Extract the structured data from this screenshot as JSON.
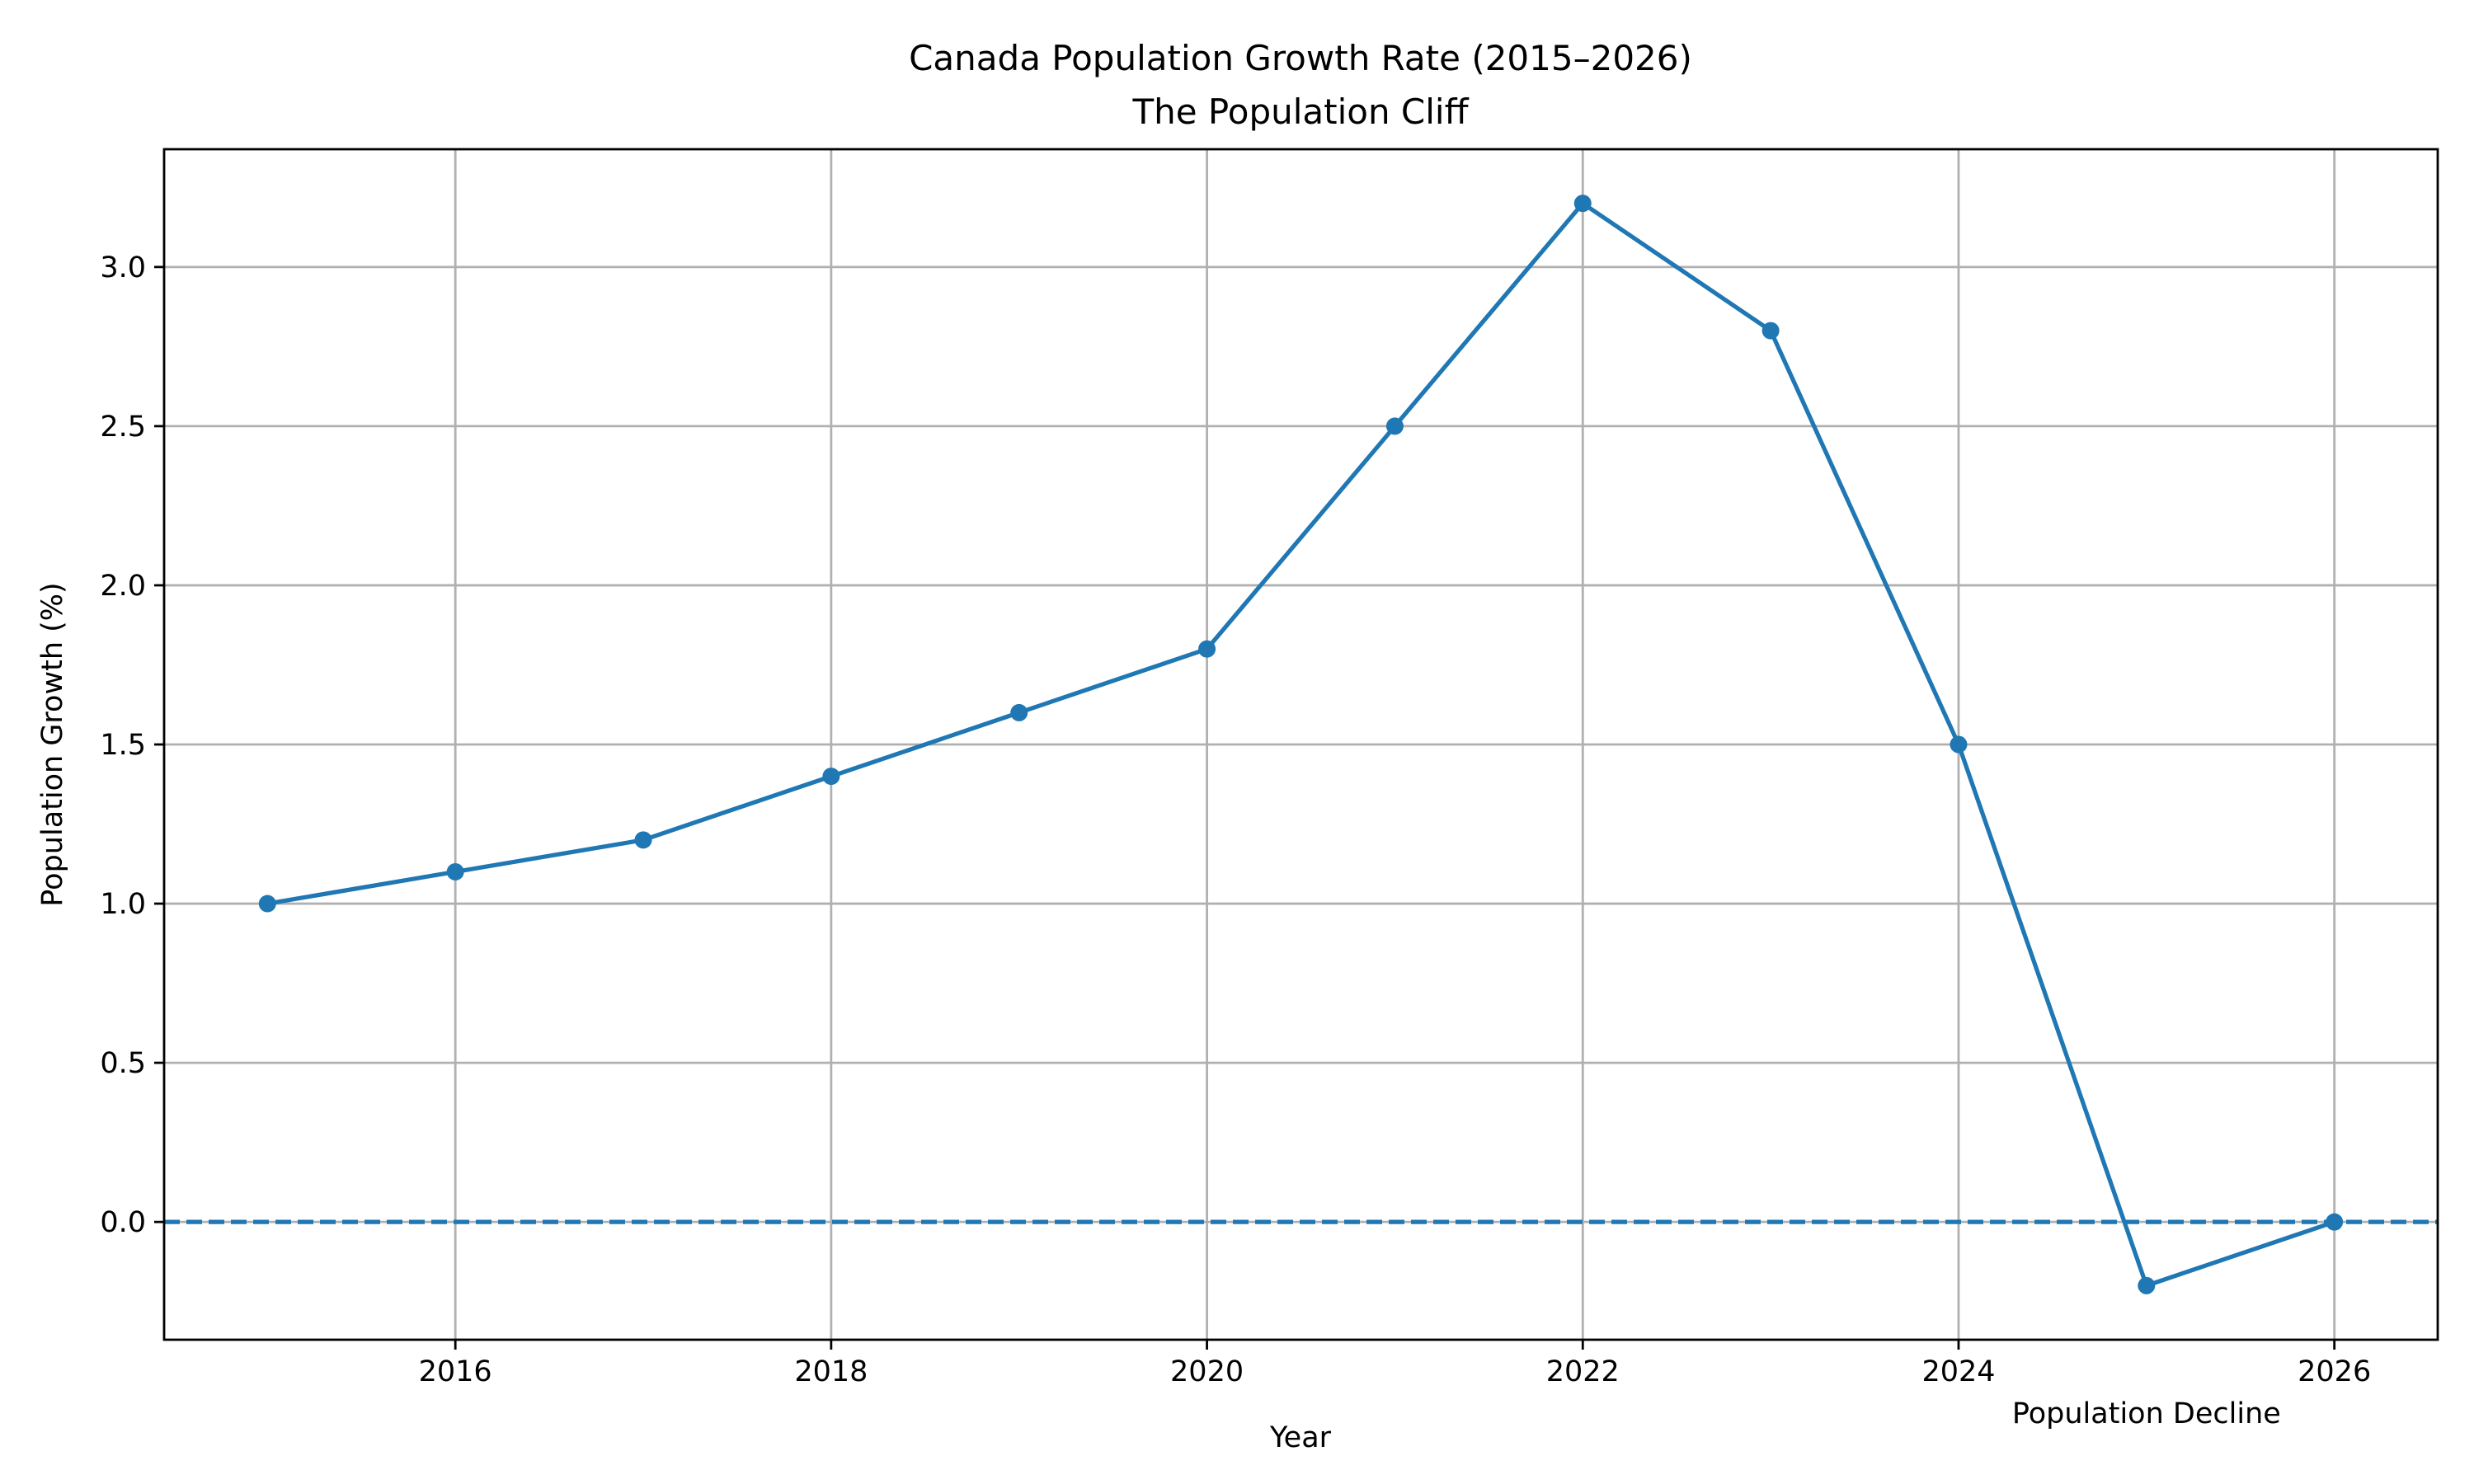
{
  "chart_data": {
    "type": "line",
    "title": "Canada Population Growth Rate (2015–2026)",
    "subtitle": "The Population Cliff",
    "xlabel": "Year",
    "ylabel": "Population Growth (%)",
    "x": [
      2015,
      2016,
      2017,
      2018,
      2019,
      2020,
      2021,
      2022,
      2023,
      2024,
      2025,
      2026
    ],
    "series": [
      {
        "values": [
          1.0,
          1.1,
          1.2,
          1.4,
          1.6,
          1.8,
          2.5,
          3.2,
          2.8,
          1.5,
          -0.2,
          0.0
        ],
        "color": "#1f77b4",
        "marker": "circle"
      }
    ],
    "reference_line": {
      "y": 0.0,
      "style": "dashed",
      "color": "#1f77b4"
    },
    "annotations": [
      {
        "text": "Population Decline",
        "x": 2025,
        "y": -0.6
      }
    ],
    "xlim": [
      2014.45,
      2026.55
    ],
    "ylim": [
      -0.37,
      3.37
    ],
    "xticks": [
      "2016",
      "2018",
      "2020",
      "2022",
      "2024",
      "2026"
    ],
    "yticks": [
      "0.0",
      "0.5",
      "1.0",
      "1.5",
      "2.0",
      "2.5",
      "3.0"
    ],
    "grid": true
  }
}
